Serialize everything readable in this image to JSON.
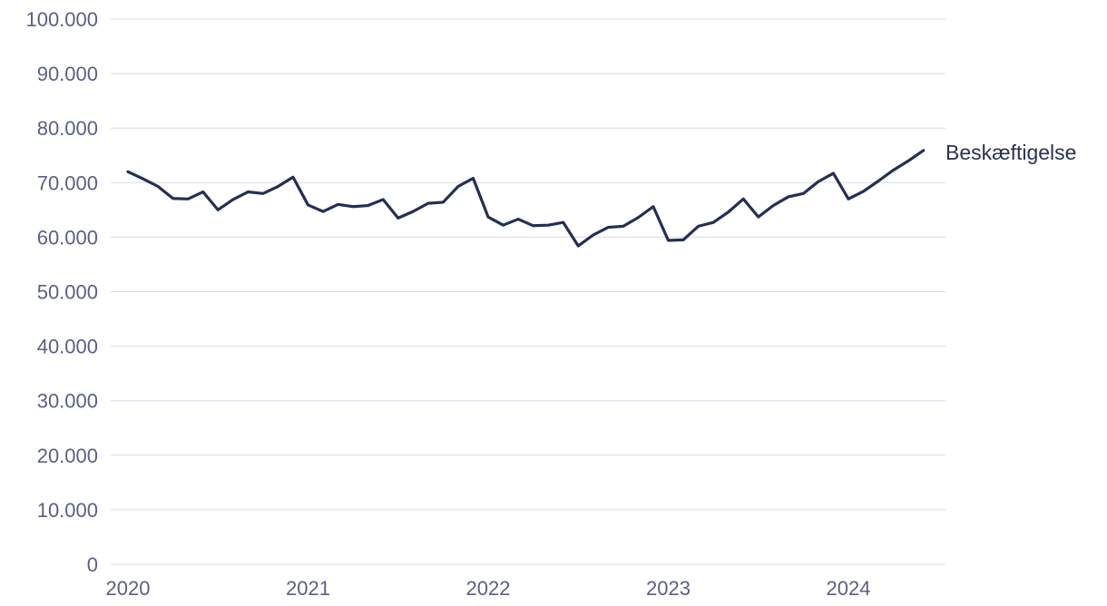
{
  "chart_data": {
    "type": "line",
    "title": "",
    "xlabel": "",
    "ylabel": "",
    "ylim": [
      0,
      100000
    ],
    "grid": true,
    "y_ticks": [
      {
        "value": 0,
        "label": "0"
      },
      {
        "value": 10000,
        "label": "10.000"
      },
      {
        "value": 20000,
        "label": "20.000"
      },
      {
        "value": 30000,
        "label": "30.000"
      },
      {
        "value": 40000,
        "label": "40.000"
      },
      {
        "value": 50000,
        "label": "50.000"
      },
      {
        "value": 60000,
        "label": "60.000"
      },
      {
        "value": 70000,
        "label": "70.000"
      },
      {
        "value": 80000,
        "label": "80.000"
      },
      {
        "value": 90000,
        "label": "90.000"
      },
      {
        "value": 100000,
        "label": "100.000"
      }
    ],
    "x_ticks": [
      {
        "value": "2020-01",
        "label": "2020"
      },
      {
        "value": "2021-01",
        "label": "2021"
      },
      {
        "value": "2022-01",
        "label": "2022"
      },
      {
        "value": "2023-01",
        "label": "2023"
      },
      {
        "value": "2024-01",
        "label": "2024"
      }
    ],
    "series": [
      {
        "name": "Beskæftigelse",
        "color": "#252f55",
        "x": [
          "2020-01",
          "2020-02",
          "2020-03",
          "2020-04",
          "2020-05",
          "2020-06",
          "2020-07",
          "2020-08",
          "2020-09",
          "2020-10",
          "2020-11",
          "2020-12",
          "2021-01",
          "2021-02",
          "2021-03",
          "2021-04",
          "2021-05",
          "2021-06",
          "2021-07",
          "2021-08",
          "2021-09",
          "2021-10",
          "2021-11",
          "2021-12",
          "2022-01",
          "2022-02",
          "2022-03",
          "2022-04",
          "2022-05",
          "2022-06",
          "2022-07",
          "2022-08",
          "2022-09",
          "2022-10",
          "2022-11",
          "2022-12",
          "2023-01",
          "2023-02",
          "2023-03",
          "2023-04",
          "2023-05",
          "2023-06",
          "2023-07",
          "2023-08",
          "2023-09",
          "2023-10",
          "2023-11",
          "2023-12",
          "2024-01",
          "2024-02",
          "2024-03",
          "2024-04",
          "2024-05",
          "2024-06"
        ],
        "values": [
          72000,
          70700,
          69300,
          67100,
          67000,
          68300,
          65000,
          66900,
          68300,
          68000,
          69300,
          71000,
          65900,
          64700,
          66000,
          65600,
          65800,
          66900,
          63500,
          64700,
          66200,
          66400,
          69300,
          70800,
          63700,
          62200,
          63300,
          62100,
          62200,
          62700,
          58400,
          60400,
          61800,
          62000,
          63600,
          65600,
          59400,
          59500,
          62000,
          62700,
          64600,
          67000,
          63700,
          65800,
          67400,
          68000,
          70200,
          71700,
          67000,
          68400,
          70300,
          72300,
          74000,
          75900
        ]
      }
    ]
  }
}
